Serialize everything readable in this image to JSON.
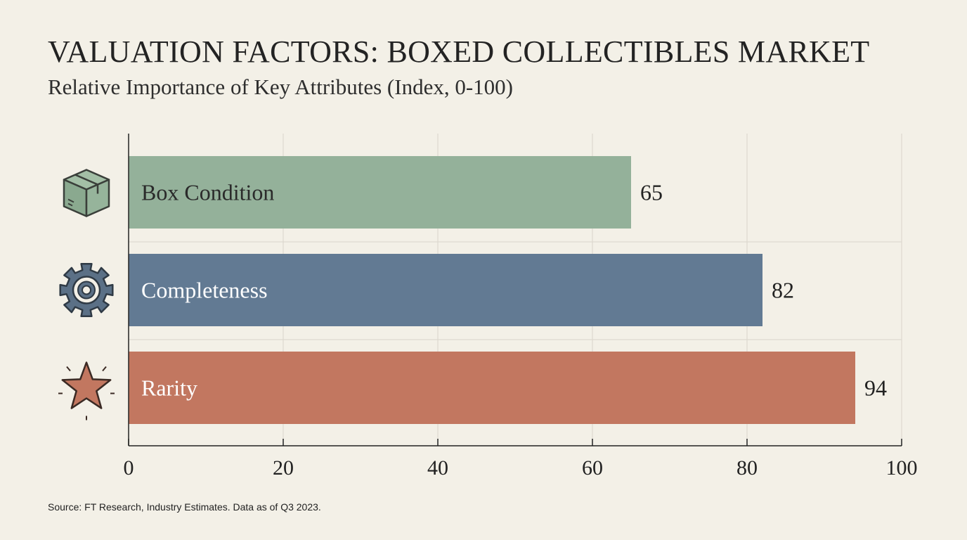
{
  "title": "VALUATION FACTORS: BOXED COLLECTIBLES MARKET",
  "subtitle": "Relative Importance of Key Attributes (Index, 0-100)",
  "source": "Source: FT Research, Industry Estimates. Data as of Q3 2023.",
  "chart_data": {
    "type": "bar",
    "orientation": "horizontal",
    "categories": [
      "Box Condition",
      "Completeness",
      "Rarity"
    ],
    "values": [
      65,
      82,
      94
    ],
    "icons": [
      "box-icon",
      "gear-icon",
      "star-icon"
    ],
    "colors": [
      "#94b19a",
      "#627a93",
      "#c27760"
    ],
    "label_colors": [
      "#2a2a2a",
      "#ffffff",
      "#ffffff"
    ],
    "xlim": [
      0,
      100
    ],
    "xticks": [
      "0",
      "20",
      "40",
      "60",
      "80",
      "100"
    ],
    "grid": true,
    "legend": "none"
  }
}
